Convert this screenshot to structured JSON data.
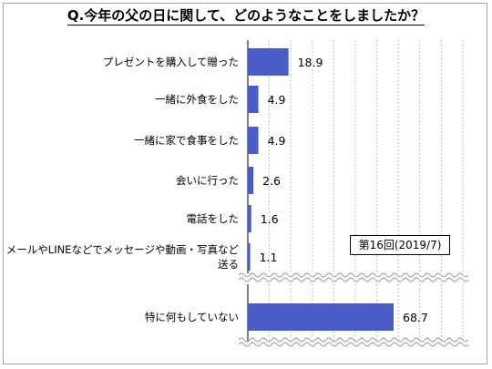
{
  "chart_data": {
    "type": "bar",
    "orientation": "horizontal",
    "title": "Q.今年の父の日に関して、どのようなことをしましたか？",
    "categories": [
      "プレゼントを購入して贈った",
      "一緒に外食をした",
      "一緒に家で食事をした",
      "会いに行った",
      "電話をした",
      "メールやLINEなどでメッセージや動画・写真など\n送る",
      "特に何もしていない"
    ],
    "values": [
      18.9,
      4.9,
      4.9,
      2.6,
      1.6,
      1.1,
      68.7
    ],
    "axis_break": true,
    "note": "第16回(2019/7)",
    "bar_color": "#4a5cc8",
    "grid_color": "#bfbfbf",
    "grid": true,
    "legend": false
  }
}
